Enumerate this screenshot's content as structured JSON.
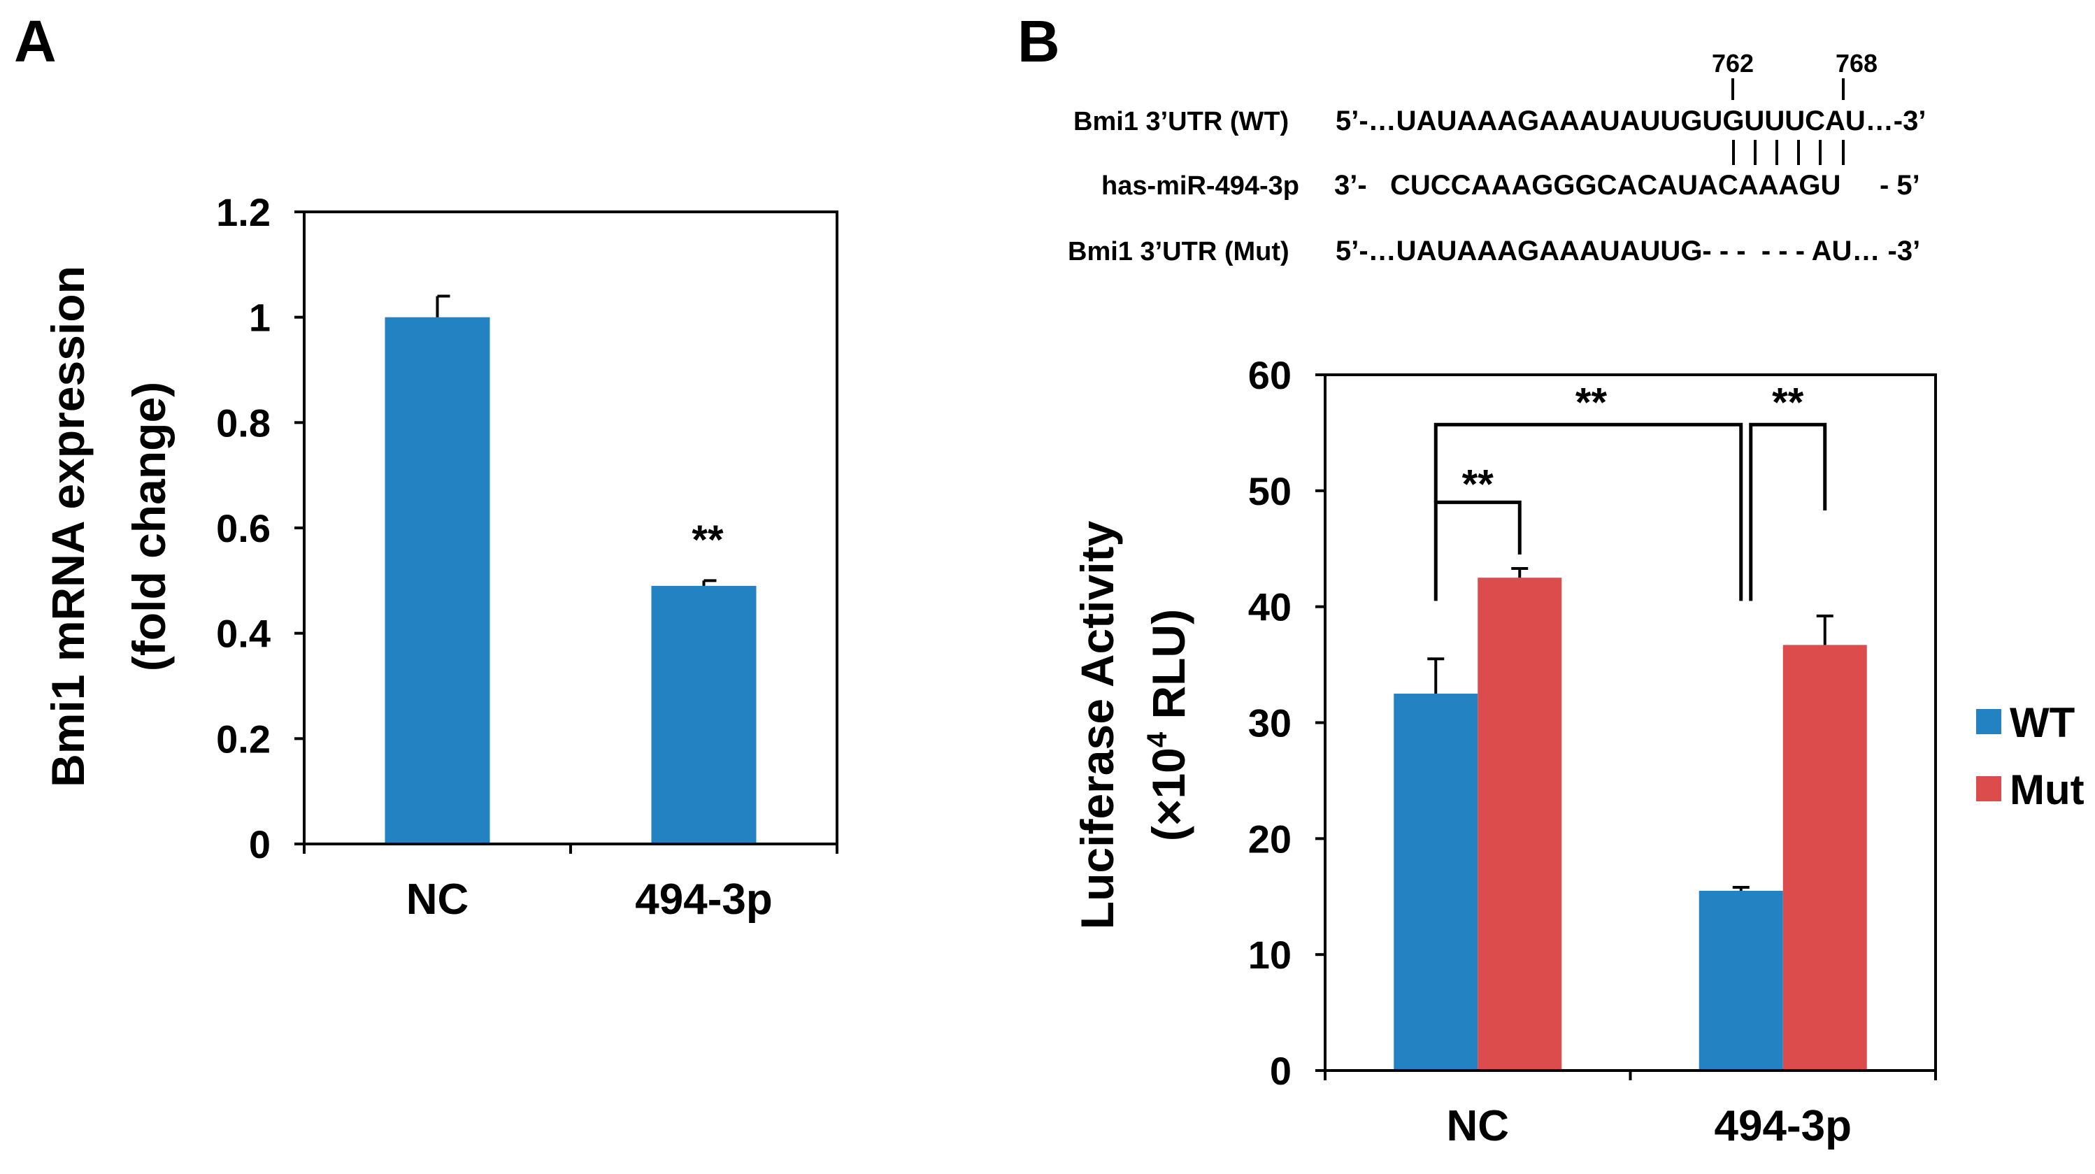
{
  "panels": {
    "a_label": "A",
    "b_label": "B"
  },
  "colors": {
    "wt": "#2382C2",
    "mut": "#DC4C4C",
    "axis": "#000000"
  },
  "sequence": {
    "pos1": "762",
    "pos2": "768",
    "wt_label": "Bmi1 3’UTR (WT)",
    "wt_seq": "5’-…UAUAAAGAAAUAUUGUGUUUCAU…-3’",
    "mir_label": "has-miR-494-3p",
    "mir_seq": "3’-   CUCCAAAGGGCACAUACAAAGU     - 5’",
    "mut_label": "Bmi1 3’UTR (Mut)",
    "mut_seq": "5’-…UAUAAAGAAAUAUUG- - -  - - - AU… -3’"
  },
  "chart_data": [
    {
      "type": "bar",
      "title": "",
      "xlabel": "",
      "ylabel": "Bmi1 mRNA expression",
      "ylabel2": "(fold change)",
      "categories": [
        "NC",
        "494-3p"
      ],
      "values": [
        1.0,
        0.49
      ],
      "errors": [
        0.04,
        0.01
      ],
      "ylim": [
        0,
        1.2
      ],
      "yticks": [
        "0",
        "0.2",
        "0.4",
        "0.6",
        "0.8",
        "1",
        "1.2"
      ],
      "annotation": "**"
    },
    {
      "type": "bar",
      "title": "",
      "xlabel": "",
      "ylabel": "Luciferase Activity",
      "ylabel2_pre": "(×10",
      "ylabel2_sup": "4",
      "ylabel2_post": " RLU)",
      "categories": [
        "NC",
        "494-3p"
      ],
      "series": [
        {
          "name": "WT",
          "values": [
            32.5,
            15.5
          ],
          "errors": [
            3.0,
            0.3
          ]
        },
        {
          "name": "Mut",
          "values": [
            42.5,
            36.7
          ],
          "errors": [
            0.8,
            2.5
          ]
        }
      ],
      "ylim": [
        0,
        60
      ],
      "yticks": [
        "0",
        "10",
        "20",
        "30",
        "40",
        "50",
        "60"
      ],
      "significance": [
        "**",
        "**",
        "**"
      ],
      "legend_position": "right"
    }
  ]
}
